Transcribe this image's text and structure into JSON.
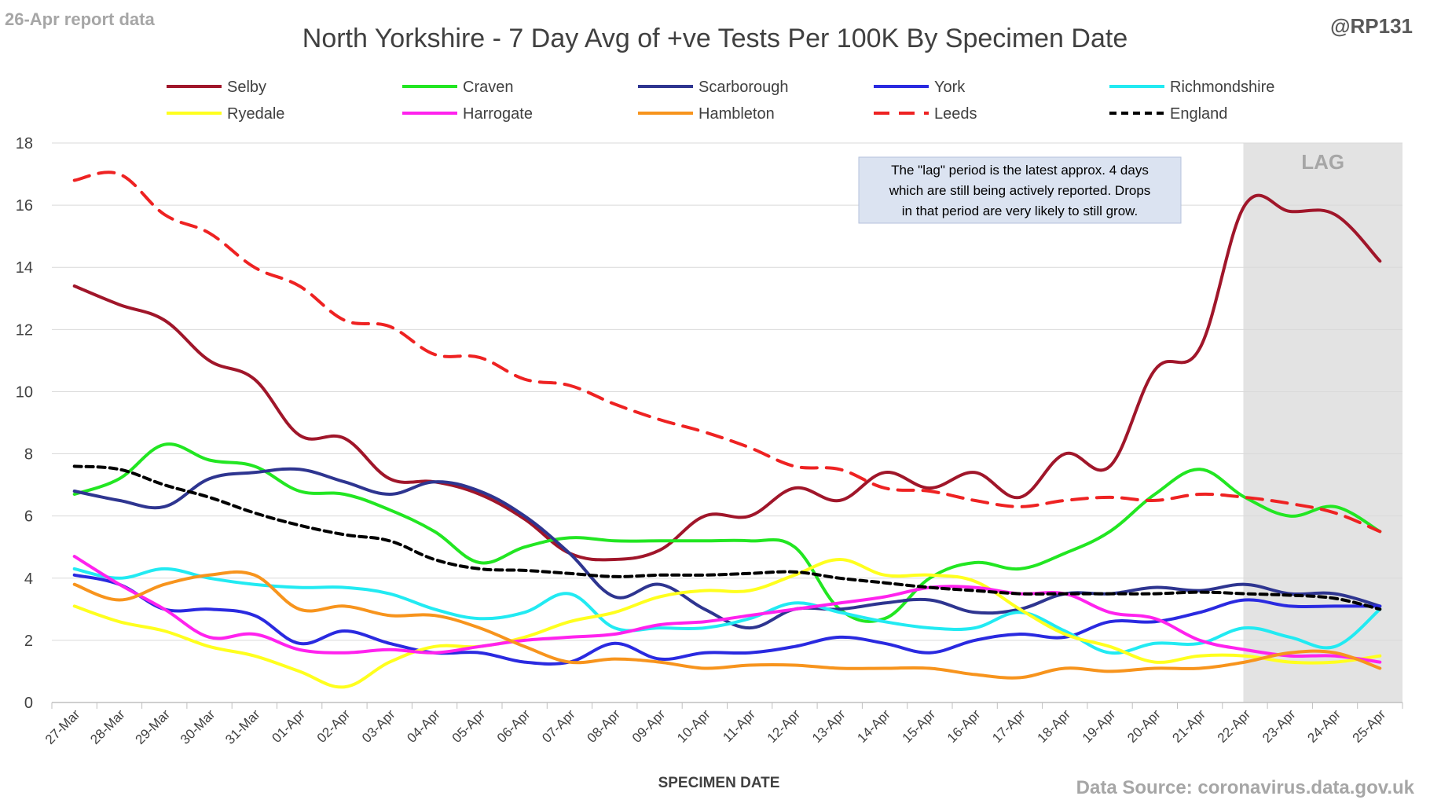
{
  "header": {
    "report_note": "26-Apr report data",
    "handle": "@RP131",
    "source": "Data Source: coronavirus.data.gov.uk"
  },
  "annotation": {
    "lines": [
      "The \"lag\" period is the latest approx. 4 days",
      "which are still being actively reported.  Drops",
      "in that period are very likely to still grow."
    ]
  },
  "chart_data": {
    "type": "line",
    "title": "North Yorkshire - 7 Day Avg of +ve Tests Per 100K By Specimen Date",
    "xlabel": "SPECIMEN DATE",
    "ylabel": "",
    "ylim": [
      0,
      18
    ],
    "yticks": [
      0,
      2,
      4,
      6,
      8,
      10,
      12,
      14,
      16,
      18
    ],
    "grid": "horizontal",
    "legend_position": "top",
    "lag_label": "LAG",
    "lag_range": [
      "22-Apr",
      "25-Apr"
    ],
    "categories": [
      "27-Mar",
      "28-Mar",
      "29-Mar",
      "30-Mar",
      "31-Mar",
      "01-Apr",
      "02-Apr",
      "03-Apr",
      "04-Apr",
      "05-Apr",
      "06-Apr",
      "07-Apr",
      "08-Apr",
      "09-Apr",
      "10-Apr",
      "11-Apr",
      "12-Apr",
      "13-Apr",
      "14-Apr",
      "15-Apr",
      "16-Apr",
      "17-Apr",
      "18-Apr",
      "19-Apr",
      "20-Apr",
      "21-Apr",
      "22-Apr",
      "23-Apr",
      "24-Apr",
      "25-Apr"
    ],
    "series": [
      {
        "name": "Selby",
        "color": "#a0162a",
        "dash": "solid",
        "values": [
          13.4,
          12.8,
          12.3,
          11.0,
          10.4,
          8.6,
          8.5,
          7.2,
          7.1,
          6.7,
          5.9,
          4.8,
          4.6,
          4.9,
          6.0,
          6.0,
          6.9,
          6.5,
          7.4,
          6.9,
          7.4,
          6.6,
          8.0,
          7.6,
          10.7,
          11.4,
          16.0,
          15.8,
          15.7,
          14.2
        ]
      },
      {
        "name": "Craven",
        "color": "#22e622",
        "dash": "solid",
        "values": [
          6.7,
          7.2,
          8.3,
          7.8,
          7.6,
          6.8,
          6.7,
          6.2,
          5.5,
          4.5,
          5.0,
          5.3,
          5.2,
          5.2,
          5.2,
          5.2,
          5.0,
          3.0,
          2.7,
          4.0,
          4.5,
          4.3,
          4.8,
          5.5,
          6.7,
          7.5,
          6.6,
          6.0,
          6.3,
          5.5
        ]
      },
      {
        "name": "Scarborough",
        "color": "#2e3590",
        "dash": "solid",
        "values": [
          6.8,
          6.5,
          6.3,
          7.2,
          7.4,
          7.5,
          7.1,
          6.7,
          7.1,
          6.8,
          6.0,
          4.8,
          3.4,
          3.8,
          3.0,
          2.4,
          3.0,
          3.0,
          3.2,
          3.3,
          2.9,
          3.0,
          3.5,
          3.5,
          3.7,
          3.6,
          3.8,
          3.5,
          3.5,
          3.1
        ]
      },
      {
        "name": "York",
        "color": "#2a2ae0",
        "dash": "solid",
        "values": [
          4.1,
          3.8,
          3.0,
          3.0,
          2.8,
          1.9,
          2.3,
          1.9,
          1.6,
          1.6,
          1.3,
          1.3,
          1.9,
          1.4,
          1.6,
          1.6,
          1.8,
          2.1,
          1.9,
          1.6,
          2.0,
          2.2,
          2.1,
          2.6,
          2.6,
          2.9,
          3.3,
          3.1,
          3.1,
          3.1
        ]
      },
      {
        "name": "Richmondshire",
        "color": "#22eaf2",
        "dash": "solid",
        "values": [
          4.3,
          4.0,
          4.3,
          4.0,
          3.8,
          3.7,
          3.7,
          3.5,
          3.0,
          2.7,
          2.9,
          3.5,
          2.4,
          2.4,
          2.4,
          2.7,
          3.2,
          2.9,
          2.6,
          2.4,
          2.4,
          2.9,
          2.3,
          1.6,
          1.9,
          1.9,
          2.4,
          2.1,
          1.8,
          3.0
        ]
      },
      {
        "name": "Ryedale",
        "color": "#ffff1e",
        "dash": "solid",
        "values": [
          3.1,
          2.6,
          2.3,
          1.8,
          1.5,
          1.0,
          0.5,
          1.3,
          1.8,
          1.8,
          2.1,
          2.6,
          2.9,
          3.4,
          3.6,
          3.6,
          4.1,
          4.6,
          4.1,
          4.1,
          3.9,
          3.0,
          2.2,
          1.8,
          1.3,
          1.5,
          1.5,
          1.3,
          1.3,
          1.5
        ]
      },
      {
        "name": "Harrogate",
        "color": "#ff22ee",
        "dash": "solid",
        "values": [
          4.7,
          3.8,
          3.0,
          2.1,
          2.2,
          1.7,
          1.6,
          1.7,
          1.6,
          1.8,
          2.0,
          2.1,
          2.2,
          2.5,
          2.6,
          2.8,
          3.0,
          3.2,
          3.4,
          3.7,
          3.7,
          3.5,
          3.5,
          2.9,
          2.7,
          2.0,
          1.7,
          1.5,
          1.5,
          1.3
        ]
      },
      {
        "name": "Hambleton",
        "color": "#f7941d",
        "dash": "solid",
        "values": [
          3.8,
          3.3,
          3.8,
          4.1,
          4.1,
          3.0,
          3.1,
          2.8,
          2.8,
          2.4,
          1.8,
          1.3,
          1.4,
          1.3,
          1.1,
          1.2,
          1.2,
          1.1,
          1.1,
          1.1,
          0.9,
          0.8,
          1.1,
          1.0,
          1.1,
          1.1,
          1.3,
          1.6,
          1.6,
          1.1
        ]
      },
      {
        "name": "Leeds",
        "color": "#ee2222",
        "dash": "long",
        "values": [
          16.8,
          17.0,
          15.7,
          15.1,
          14.0,
          13.4,
          12.3,
          12.1,
          11.2,
          11.1,
          10.4,
          10.2,
          9.6,
          9.1,
          8.7,
          8.2,
          7.6,
          7.5,
          6.9,
          6.8,
          6.5,
          6.3,
          6.5,
          6.6,
          6.5,
          6.7,
          6.6,
          6.4,
          6.1,
          5.5
        ]
      },
      {
        "name": "England",
        "color": "#000000",
        "dash": "short",
        "values": [
          7.6,
          7.5,
          7.0,
          6.6,
          6.1,
          5.7,
          5.4,
          5.2,
          4.6,
          4.3,
          4.25,
          4.15,
          4.05,
          4.1,
          4.1,
          4.15,
          4.2,
          4.0,
          3.85,
          3.7,
          3.6,
          3.5,
          3.5,
          3.5,
          3.5,
          3.55,
          3.5,
          3.45,
          3.35,
          3.0
        ]
      }
    ]
  }
}
